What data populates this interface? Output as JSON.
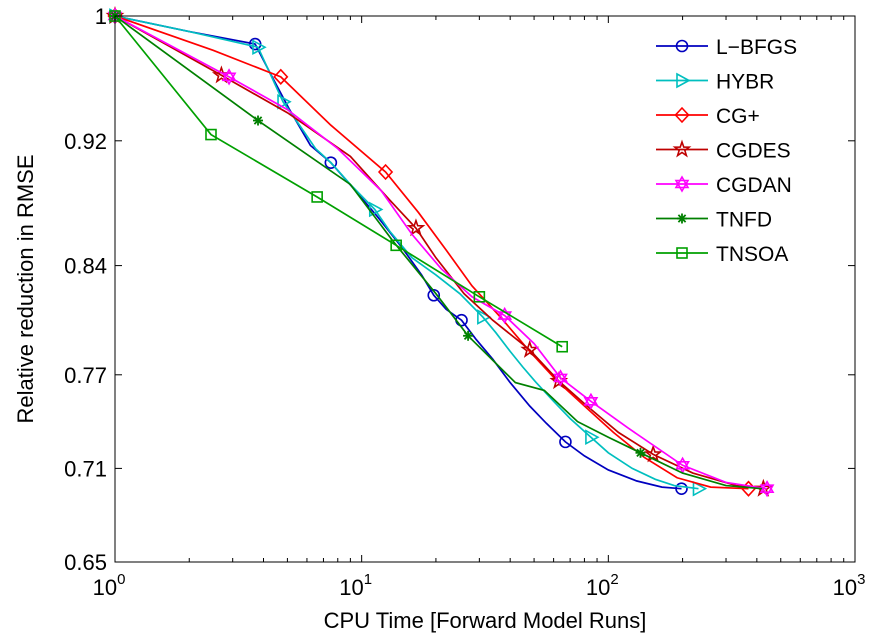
{
  "chart_data": {
    "type": "line",
    "title": "",
    "xlabel": "CPU Time [Forward Model Runs]",
    "ylabel": "Relative reduction in RMSE",
    "xscale": "log",
    "xlim": [
      1,
      1000
    ],
    "ylim": [
      0.65,
      1.0
    ],
    "x_ticks": [
      {
        "value": 1,
        "base": "10",
        "exp": "0"
      },
      {
        "value": 10,
        "base": "10",
        "exp": "1"
      },
      {
        "value": 100,
        "base": "10",
        "exp": "2"
      },
      {
        "value": 1000,
        "base": "10",
        "exp": "3"
      }
    ],
    "y_ticks": [
      {
        "value": 0.65,
        "label": "0.65"
      },
      {
        "value": 0.71,
        "label": "0.71"
      },
      {
        "value": 0.77,
        "label": "0.77"
      },
      {
        "value": 0.84,
        "label": "0.84"
      },
      {
        "value": 0.92,
        "label": "0.92"
      },
      {
        "value": 1.0,
        "label": "1"
      }
    ],
    "grid": false,
    "legend_position": "top-right",
    "series": [
      {
        "name": "L−BFGS",
        "color": "#0000bf",
        "marker": "circle",
        "x": [
          1,
          2,
          3.7,
          4.3,
          5.1,
          6.2,
          7.5,
          9.2,
          11.5,
          14.5,
          17.5,
          19.6,
          22,
          25.4,
          29,
          34,
          40,
          48,
          56,
          67,
          80,
          100,
          130,
          165,
          198
        ],
        "y": [
          1.0,
          0.99,
          0.982,
          0.962,
          0.94,
          0.917,
          0.906,
          0.89,
          0.872,
          0.852,
          0.834,
          0.821,
          0.812,
          0.805,
          0.793,
          0.78,
          0.765,
          0.75,
          0.739,
          0.727,
          0.718,
          0.709,
          0.702,
          0.698,
          0.697
        ],
        "marker_x": [
          1,
          3.7,
          7.5,
          19.6,
          25.4,
          67,
          198
        ],
        "marker_y": [
          1.0,
          0.982,
          0.906,
          0.821,
          0.805,
          0.727,
          0.697
        ]
      },
      {
        "name": "HYBR",
        "color": "#00bfbf",
        "marker": "triangle-right",
        "x": [
          1,
          2,
          3.8,
          4.8,
          5.6,
          6.5,
          7.5,
          9,
          11.3,
          13,
          16,
          20,
          25,
          31,
          35,
          40,
          45,
          51,
          60,
          70,
          85,
          100,
          125,
          155,
          185,
          232
        ],
        "y": [
          1.0,
          0.99,
          0.98,
          0.945,
          0.93,
          0.915,
          0.906,
          0.892,
          0.876,
          0.862,
          0.845,
          0.834,
          0.822,
          0.807,
          0.797,
          0.785,
          0.775,
          0.765,
          0.753,
          0.742,
          0.73,
          0.72,
          0.71,
          0.703,
          0.699,
          0.697
        ],
        "marker_x": [
          1,
          3.8,
          4.8,
          11.3,
          31,
          85,
          232
        ],
        "marker_y": [
          1.0,
          0.98,
          0.945,
          0.876,
          0.807,
          0.73,
          0.697
        ]
      },
      {
        "name": "CG+",
        "color": "#ff0000",
        "marker": "diamond",
        "x": [
          1,
          2.5,
          4.7,
          7.5,
          12.5,
          17,
          22,
          28,
          37,
          48,
          62,
          80,
          105,
          140,
          190,
          260,
          370
        ],
        "y": [
          1.0,
          0.978,
          0.961,
          0.93,
          0.9,
          0.874,
          0.85,
          0.827,
          0.806,
          0.785,
          0.766,
          0.75,
          0.733,
          0.717,
          0.704,
          0.698,
          0.697
        ],
        "marker_x": [
          1,
          4.7,
          12.5,
          370
        ],
        "marker_y": [
          1.0,
          0.961,
          0.9,
          0.697
        ]
      },
      {
        "name": "CGDES",
        "color": "#bf0000",
        "marker": "star",
        "x": [
          1,
          2.7,
          5,
          9,
          13,
          16.6,
          20,
          26,
          34,
          48,
          63,
          82,
          110,
          152,
          220,
          330,
          425
        ],
        "y": [
          1.0,
          0.962,
          0.938,
          0.91,
          0.882,
          0.864,
          0.845,
          0.822,
          0.805,
          0.786,
          0.766,
          0.75,
          0.733,
          0.719,
          0.707,
          0.699,
          0.697
        ],
        "marker_x": [
          1,
          2.7,
          16.6,
          48,
          63,
          152,
          425
        ],
        "marker_y": [
          1.0,
          0.962,
          0.864,
          0.786,
          0.766,
          0.719,
          0.697
        ]
      },
      {
        "name": "CGDAN",
        "color": "#ff00ff",
        "marker": "hexagram",
        "x": [
          1,
          2.9,
          5,
          8,
          12,
          16,
          21,
          28,
          38,
          50,
          64,
          85,
          120,
          200,
          300,
          440
        ],
        "y": [
          1.0,
          0.961,
          0.94,
          0.915,
          0.888,
          0.86,
          0.838,
          0.82,
          0.808,
          0.79,
          0.768,
          0.753,
          0.736,
          0.712,
          0.701,
          0.697
        ],
        "marker_x": [
          1,
          2.9,
          38,
          64,
          85,
          200,
          440
        ],
        "marker_y": [
          1.0,
          0.961,
          0.808,
          0.768,
          0.753,
          0.712,
          0.697
        ]
      },
      {
        "name": "TNFD",
        "color": "#008000",
        "marker": "asterisk",
        "x": [
          1,
          3.8,
          9,
          13.5,
          20,
          27,
          42,
          55,
          75,
          100,
          135,
          200,
          300,
          420
        ],
        "y": [
          1.0,
          0.933,
          0.892,
          0.855,
          0.822,
          0.795,
          0.765,
          0.76,
          0.74,
          0.73,
          0.72,
          0.707,
          0.699,
          0.697
        ],
        "marker_x": [
          1,
          3.8,
          27,
          135
        ],
        "marker_y": [
          1.0,
          0.933,
          0.795,
          0.72
        ]
      },
      {
        "name": "TNSOA",
        "color": "#00a000",
        "marker": "square",
        "x": [
          1,
          2.45,
          6.6,
          13.8,
          30,
          65
        ],
        "y": [
          1.0,
          0.924,
          0.884,
          0.853,
          0.82,
          0.788
        ],
        "marker_x": [
          1,
          2.45,
          6.6,
          13.8,
          30,
          65
        ],
        "marker_y": [
          1.0,
          0.924,
          0.884,
          0.853,
          0.82,
          0.788
        ]
      }
    ]
  }
}
